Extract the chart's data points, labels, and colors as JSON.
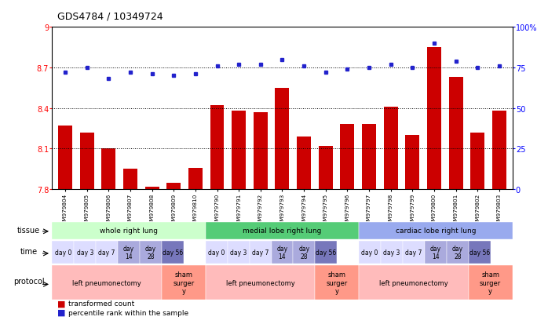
{
  "title": "GDS4784 / 10349724",
  "samples": [
    "GSM979804",
    "GSM979805",
    "GSM979806",
    "GSM979807",
    "GSM979808",
    "GSM979809",
    "GSM979810",
    "GSM979790",
    "GSM979791",
    "GSM979792",
    "GSM979793",
    "GSM979794",
    "GSM979795",
    "GSM979796",
    "GSM979797",
    "GSM979798",
    "GSM979799",
    "GSM979800",
    "GSM979801",
    "GSM979802",
    "GSM979803"
  ],
  "red_values": [
    8.27,
    8.22,
    8.1,
    7.95,
    7.82,
    7.85,
    7.96,
    8.42,
    8.38,
    8.37,
    8.55,
    8.19,
    8.12,
    8.28,
    8.28,
    8.41,
    8.2,
    8.85,
    8.63,
    8.22,
    8.38
  ],
  "blue_values": [
    72,
    75,
    68,
    72,
    71,
    70,
    71,
    76,
    77,
    77,
    80,
    76,
    72,
    74,
    75,
    77,
    75,
    90,
    79,
    75,
    76
  ],
  "ylim_left": [
    7.8,
    9.0
  ],
  "ylim_right": [
    0,
    100
  ],
  "yticks_left": [
    7.8,
    8.1,
    8.4,
    8.7,
    9.0
  ],
  "yticks_right": [
    0,
    25,
    50,
    75,
    100
  ],
  "ytick_labels_left": [
    "7.8",
    "8.1",
    "8.4",
    "8.7",
    "9"
  ],
  "ytick_labels_right": [
    "0",
    "25",
    "50",
    "75",
    "100%"
  ],
  "hlines": [
    8.1,
    8.4,
    8.7
  ],
  "bar_color": "#cc0000",
  "dot_color": "#2222cc",
  "tissue_groups": [
    {
      "label": "whole right lung",
      "start": 0,
      "end": 7,
      "color": "#ccffcc"
    },
    {
      "label": "medial lobe right lung",
      "start": 7,
      "end": 14,
      "color": "#55cc77"
    },
    {
      "label": "cardiac lobe right lung",
      "start": 14,
      "end": 21,
      "color": "#99aaee"
    }
  ],
  "time_indices": [
    0,
    1,
    2,
    3,
    4,
    5,
    7,
    8,
    9,
    10,
    11,
    12,
    14,
    15,
    16,
    17,
    18,
    19
  ],
  "time_labels": [
    "day 0",
    "day 3",
    "day 7",
    "day\n14",
    "day\n28",
    "day 56",
    "day 0",
    "day 3",
    "day 7",
    "day\n14",
    "day\n28",
    "day 56",
    "day 0",
    "day 3",
    "day 7",
    "day\n14",
    "day\n28",
    "day 56"
  ],
  "time_colors": [
    "#ddddff",
    "#ddddff",
    "#ddddff",
    "#aaaadd",
    "#aaaadd",
    "#7777bb",
    "#ddddff",
    "#ddddff",
    "#ddddff",
    "#aaaadd",
    "#aaaadd",
    "#7777bb",
    "#ddddff",
    "#ddddff",
    "#ddddff",
    "#aaaadd",
    "#aaaadd",
    "#7777bb"
  ],
  "protocol_groups": [
    {
      "label": "left pneumonectomy",
      "start": 0,
      "end": 5,
      "color": "#ffbbbb"
    },
    {
      "label": "sham\nsurger\ny",
      "start": 5,
      "end": 7,
      "color": "#ff9988"
    },
    {
      "label": "left pneumonectomy",
      "start": 7,
      "end": 12,
      "color": "#ffbbbb"
    },
    {
      "label": "sham\nsurger\ny",
      "start": 12,
      "end": 14,
      "color": "#ff9988"
    },
    {
      "label": "left pneumonectomy",
      "start": 14,
      "end": 19,
      "color": "#ffbbbb"
    },
    {
      "label": "sham\nsurger\ny",
      "start": 19,
      "end": 21,
      "color": "#ff9988"
    }
  ]
}
